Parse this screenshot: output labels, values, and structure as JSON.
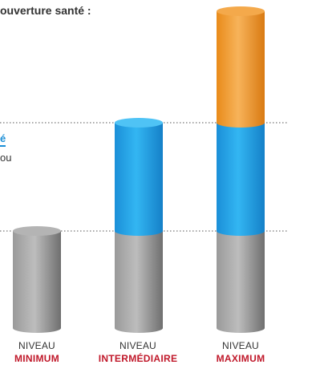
{
  "header": {
    "title_fragment": "ouverture santé :",
    "accent_fragment": "é",
    "body_fragment": "ou"
  },
  "levels": [
    {
      "line1": "NIVEAU",
      "line2": "MINIMUM",
      "segments": [
        "grey"
      ]
    },
    {
      "line1": "NIVEAU",
      "line2": "INTERMÉDIAIRE",
      "segments": [
        "grey",
        "blue"
      ]
    },
    {
      "line1": "NIVEAU",
      "line2": "MAXIMUM",
      "segments": [
        "grey",
        "blue",
        "orange"
      ]
    }
  ],
  "colors": {
    "grey": "#8f8f8f",
    "blue": "#1e9fe6",
    "orange": "#ef8f1e",
    "accent_text": "#1c8fd6",
    "label_highlight": "#c0182a",
    "dotted_line": "#555555"
  }
}
